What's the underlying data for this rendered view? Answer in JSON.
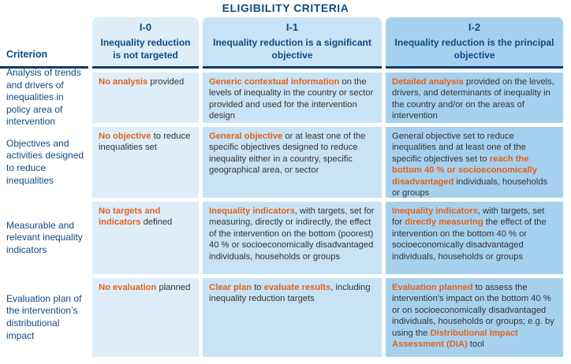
{
  "title": "ELIGIBILITY CRITERIA",
  "criterion_header": "Criterion",
  "colors": {
    "navy": "#0e4a82",
    "orange": "#e2611c",
    "line": "#0c3a64",
    "col0": "#ddeef9",
    "col1": "#c8e3f5",
    "col2": "#a6d1ee",
    "text": "#333333"
  },
  "columns": [
    {
      "code": "I-0",
      "label": "Inequality reduction is not targeted"
    },
    {
      "code": "I-1",
      "label": "Inequality reduction is a significant objective"
    },
    {
      "code": "I-2",
      "label": "Inequality reduction is the principal objective"
    }
  ],
  "rows": [
    {
      "criterion": "Analysis of trends and drivers of inequalities in policy area of intervention",
      "cells": [
        [
          {
            "t": "No analysis",
            "hl": true
          },
          {
            "t": " provided",
            "hl": false
          }
        ],
        [
          {
            "t": "Generic contextual information",
            "hl": true
          },
          {
            "t": " on the levels of inequality in the country or sector provided and used for the intervention design",
            "hl": false
          }
        ],
        [
          {
            "t": "Detailed analysis",
            "hl": true
          },
          {
            "t": " provided on the levels, drivers, and determinants of inequality in the country and/or on the areas of intervention",
            "hl": false
          }
        ]
      ]
    },
    {
      "criterion": "Objectives and activities designed to reduce inequalities",
      "cells": [
        [
          {
            "t": "No objective",
            "hl": true
          },
          {
            "t": " to reduce inequalities set",
            "hl": false
          }
        ],
        [
          {
            "t": "General objective",
            "hl": true
          },
          {
            "t": " or at least one of the specific objectives designed to reduce inequality either in a country, specific geographical area, or sector",
            "hl": false
          }
        ],
        [
          {
            "t": "General objective set to reduce inequalities and at least one of the specific objectives set to ",
            "hl": false
          },
          {
            "t": "reach the bottom 40 % or socioeconomically disadvantaged",
            "hl": true
          },
          {
            "t": " individuals, households or groups",
            "hl": false
          }
        ]
      ]
    },
    {
      "criterion": "Measurable and relevant inequality indicators",
      "cells": [
        [
          {
            "t": "No targets and indicators",
            "hl": true
          },
          {
            "t": " defined",
            "hl": false
          }
        ],
        [
          {
            "t": "Inequality indicators",
            "hl": true
          },
          {
            "t": ", with targets, set for measuring, directly or indirectly, the effect of the intervention on the bottom (poorest) 40 % or socioeconomically disadvantaged individuals, households or groups",
            "hl": false
          }
        ],
        [
          {
            "t": "Inequality indicators",
            "hl": true
          },
          {
            "t": ", with targets, set for ",
            "hl": false
          },
          {
            "t": "directly measuring",
            "hl": true
          },
          {
            "t": " the effect of the intervention on the bottom 40 % or socioeconomically disadvantaged individuals, households or groups",
            "hl": false
          }
        ]
      ]
    },
    {
      "criterion": "Evaluation plan of the intervention’s distributional impact",
      "cells": [
        [
          {
            "t": "No evaluation",
            "hl": true
          },
          {
            "t": " planned",
            "hl": false
          }
        ],
        [
          {
            "t": "Clear plan",
            "hl": true
          },
          {
            "t": " to ",
            "hl": false
          },
          {
            "t": "evaluate results",
            "hl": true
          },
          {
            "t": ", including inequality reduction targets",
            "hl": false
          }
        ],
        [
          {
            "t": "Evaluation planned",
            "hl": true
          },
          {
            "t": " to assess the intervention's impact on the bottom 40 % or on socioeconomically disadvantaged individuals, households or groups; e.g. by using the ",
            "hl": false
          },
          {
            "t": "Distributional Impact Assessment (DIA)",
            "hl": true
          },
          {
            "t": " tool",
            "hl": false
          }
        ]
      ]
    }
  ]
}
